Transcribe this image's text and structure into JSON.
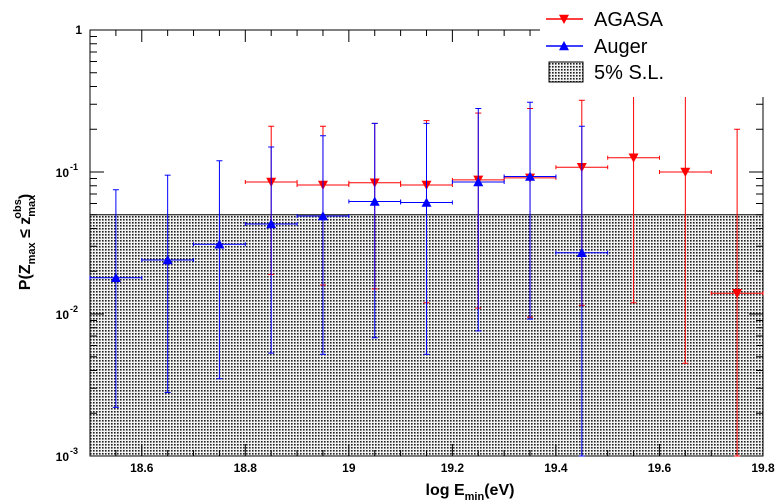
{
  "chart_data": {
    "type": "scatter",
    "title": "",
    "xlabel": "log E_min(eV)",
    "ylabel": "P(Z_max ≤ z_max^obs)",
    "xlim": [
      18.5,
      19.8
    ],
    "ylim": [
      0.001,
      1
    ],
    "y_scale": "log",
    "grid": false,
    "legend_position": "top-right",
    "x_ticks": [
      "18.6",
      "18.8",
      "19",
      "19.2",
      "19.4",
      "19.6",
      "19.8"
    ],
    "y_ticks": [
      {
        "mantissa": "10",
        "exp": "-3"
      },
      {
        "mantissa": "10",
        "exp": "-2"
      },
      {
        "mantissa": "10",
        "exp": "-1"
      },
      {
        "mantissa": "1",
        "exp": ""
      }
    ],
    "band": {
      "name": "5% S.L.",
      "ymin": 0.001,
      "ymax": 0.05
    },
    "series": [
      {
        "name": "AGASA",
        "color": "#ff0000",
        "marker": "triangle-down",
        "points": [
          {
            "x": 18.85,
            "y": 0.085,
            "xerr": 0.05,
            "ylo": 0.019,
            "yhi": 0.21
          },
          {
            "x": 18.95,
            "y": 0.081,
            "xerr": 0.05,
            "ylo": 0.016,
            "yhi": 0.21
          },
          {
            "x": 19.05,
            "y": 0.084,
            "xerr": 0.05,
            "ylo": 0.015,
            "yhi": 0.22
          },
          {
            "x": 19.15,
            "y": 0.081,
            "xerr": 0.05,
            "ylo": 0.012,
            "yhi": 0.23
          },
          {
            "x": 19.25,
            "y": 0.088,
            "xerr": 0.05,
            "ylo": 0.011,
            "yhi": 0.26
          },
          {
            "x": 19.35,
            "y": 0.091,
            "xerr": 0.05,
            "ylo": 0.0095,
            "yhi": 0.28
          },
          {
            "x": 19.45,
            "y": 0.108,
            "xerr": 0.05,
            "ylo": 0.0115,
            "yhi": 0.32
          },
          {
            "x": 19.55,
            "y": 0.126,
            "xerr": 0.05,
            "ylo": 0.012,
            "yhi": 0.37
          },
          {
            "x": 19.65,
            "y": 0.1,
            "xerr": 0.05,
            "ylo": 0.0045,
            "yhi": 0.36
          },
          {
            "x": 19.75,
            "y": 0.014,
            "xerr": 0.05,
            "ylo": 0.001,
            "yhi": 0.2
          }
        ]
      },
      {
        "name": "Auger",
        "color": "#0000ff",
        "marker": "triangle-up",
        "points": [
          {
            "x": 18.55,
            "y": 0.018,
            "xerr": 0.05,
            "ylo": 0.0022,
            "yhi": 0.075
          },
          {
            "x": 18.65,
            "y": 0.024,
            "xerr": 0.05,
            "ylo": 0.0028,
            "yhi": 0.095
          },
          {
            "x": 18.75,
            "y": 0.031,
            "xerr": 0.05,
            "ylo": 0.0035,
            "yhi": 0.12
          },
          {
            "x": 18.85,
            "y": 0.043,
            "xerr": 0.05,
            "ylo": 0.0053,
            "yhi": 0.15
          },
          {
            "x": 18.95,
            "y": 0.049,
            "xerr": 0.05,
            "ylo": 0.0052,
            "yhi": 0.18
          },
          {
            "x": 19.05,
            "y": 0.062,
            "xerr": 0.05,
            "ylo": 0.0068,
            "yhi": 0.22
          },
          {
            "x": 19.15,
            "y": 0.061,
            "xerr": 0.05,
            "ylo": 0.0052,
            "yhi": 0.22
          },
          {
            "x": 19.25,
            "y": 0.085,
            "xerr": 0.05,
            "ylo": 0.0076,
            "yhi": 0.28
          },
          {
            "x": 19.35,
            "y": 0.093,
            "xerr": 0.05,
            "ylo": 0.0092,
            "yhi": 0.31
          },
          {
            "x": 19.45,
            "y": 0.027,
            "xerr": 0.05,
            "ylo": 0.001,
            "yhi": 0.21
          }
        ]
      }
    ]
  }
}
